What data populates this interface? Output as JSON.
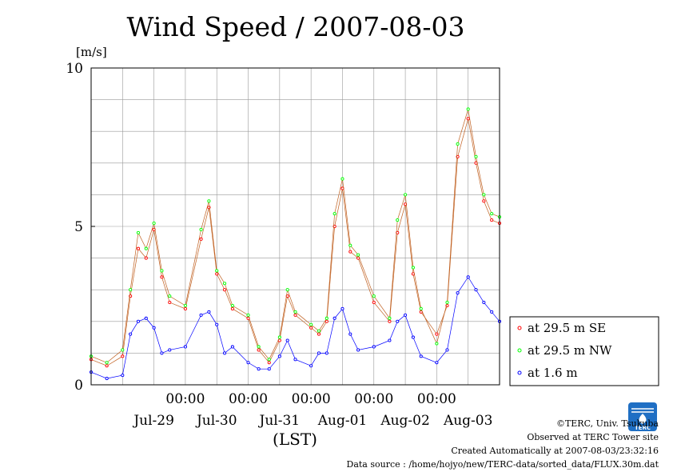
{
  "chart_data": {
    "type": "line",
    "title": "Wind Speed / 2007-08-03",
    "ylabel": "[m/s]",
    "xlabel": "(LST)",
    "ylim": [
      0,
      10
    ],
    "yticks": [
      "0",
      "5",
      "10"
    ],
    "xlim": [
      "2007-07-28T12:00",
      "2007-08-03T24:00"
    ],
    "x_time_labels": [
      "00:00",
      "00:00",
      "00:00",
      "00:00",
      "00:00"
    ],
    "x_date_labels": [
      "Jul-29",
      "Jul-30",
      "Jul-31",
      "Aug-01",
      "Aug-02",
      "Aug-03"
    ],
    "grid": true,
    "legend_position": "right",
    "series": [
      {
        "name": "at 29.5 m SE",
        "color": "#ff0000",
        "x": [
          "2007-07-28T12:00",
          "2007-07-28T18:00",
          "2007-07-29T00:00",
          "2007-07-29T03:00",
          "2007-07-29T06:00",
          "2007-07-29T09:00",
          "2007-07-29T12:00",
          "2007-07-29T15:00",
          "2007-07-29T18:00",
          "2007-07-30T00:00",
          "2007-07-30T06:00",
          "2007-07-30T09:00",
          "2007-07-30T12:00",
          "2007-07-30T15:00",
          "2007-07-30T18:00",
          "2007-07-31T00:00",
          "2007-07-31T04:00",
          "2007-07-31T08:00",
          "2007-07-31T12:00",
          "2007-07-31T15:00",
          "2007-07-31T18:00",
          "2007-08-01T00:00",
          "2007-08-01T03:00",
          "2007-08-01T06:00",
          "2007-08-01T09:00",
          "2007-08-01T12:00",
          "2007-08-01T15:00",
          "2007-08-01T18:00",
          "2007-08-02T00:00",
          "2007-08-02T06:00",
          "2007-08-02T09:00",
          "2007-08-02T12:00",
          "2007-08-02T15:00",
          "2007-08-02T18:00",
          "2007-08-03T00:00",
          "2007-08-03T04:00",
          "2007-08-03T08:00",
          "2007-08-03T12:00",
          "2007-08-03T15:00",
          "2007-08-03T18:00",
          "2007-08-03T21:00",
          "2007-08-03T24:00"
        ],
        "values": [
          0.8,
          0.6,
          0.9,
          2.8,
          4.3,
          4.0,
          4.9,
          3.4,
          2.6,
          2.4,
          4.6,
          5.6,
          3.5,
          3.0,
          2.4,
          2.1,
          1.1,
          0.7,
          1.4,
          2.8,
          2.2,
          1.8,
          1.6,
          2.0,
          5.0,
          6.2,
          4.2,
          4.0,
          2.6,
          2.0,
          4.8,
          5.7,
          3.5,
          2.3,
          1.6,
          2.5,
          7.2,
          8.4,
          7.0,
          5.8,
          5.2,
          5.1
        ]
      },
      {
        "name": "at 29.5 m NW",
        "color": "#00ff00",
        "x": [
          "2007-07-28T12:00",
          "2007-07-28T18:00",
          "2007-07-29T00:00",
          "2007-07-29T03:00",
          "2007-07-29T06:00",
          "2007-07-29T09:00",
          "2007-07-29T12:00",
          "2007-07-29T15:00",
          "2007-07-29T18:00",
          "2007-07-30T00:00",
          "2007-07-30T06:00",
          "2007-07-30T09:00",
          "2007-07-30T12:00",
          "2007-07-30T15:00",
          "2007-07-30T18:00",
          "2007-07-31T00:00",
          "2007-07-31T04:00",
          "2007-07-31T08:00",
          "2007-07-31T12:00",
          "2007-07-31T15:00",
          "2007-07-31T18:00",
          "2007-08-01T00:00",
          "2007-08-01T03:00",
          "2007-08-01T06:00",
          "2007-08-01T09:00",
          "2007-08-01T12:00",
          "2007-08-01T15:00",
          "2007-08-01T18:00",
          "2007-08-02T00:00",
          "2007-08-02T06:00",
          "2007-08-02T09:00",
          "2007-08-02T12:00",
          "2007-08-02T15:00",
          "2007-08-02T18:00",
          "2007-08-03T00:00",
          "2007-08-03T04:00",
          "2007-08-03T08:00",
          "2007-08-03T12:00",
          "2007-08-03T15:00",
          "2007-08-03T18:00",
          "2007-08-03T21:00",
          "2007-08-03T24:00"
        ],
        "values": [
          0.9,
          0.7,
          1.1,
          3.0,
          4.8,
          4.3,
          5.1,
          3.6,
          2.8,
          2.5,
          4.9,
          5.8,
          3.6,
          3.2,
          2.5,
          2.2,
          1.2,
          0.8,
          1.5,
          3.0,
          2.3,
          1.9,
          1.7,
          2.1,
          5.4,
          6.5,
          4.4,
          4.1,
          2.8,
          2.1,
          5.2,
          6.0,
          3.7,
          2.4,
          1.3,
          2.6,
          7.6,
          8.7,
          7.2,
          6.0,
          5.4,
          5.3
        ]
      },
      {
        "name": "at 1.6 m",
        "color": "#0000ff",
        "x": [
          "2007-07-28T12:00",
          "2007-07-28T18:00",
          "2007-07-29T00:00",
          "2007-07-29T03:00",
          "2007-07-29T06:00",
          "2007-07-29T09:00",
          "2007-07-29T12:00",
          "2007-07-29T15:00",
          "2007-07-29T18:00",
          "2007-07-30T00:00",
          "2007-07-30T06:00",
          "2007-07-30T09:00",
          "2007-07-30T12:00",
          "2007-07-30T15:00",
          "2007-07-30T18:00",
          "2007-07-31T00:00",
          "2007-07-31T04:00",
          "2007-07-31T08:00",
          "2007-07-31T12:00",
          "2007-07-31T15:00",
          "2007-07-31T18:00",
          "2007-08-01T00:00",
          "2007-08-01T03:00",
          "2007-08-01T06:00",
          "2007-08-01T09:00",
          "2007-08-01T12:00",
          "2007-08-01T15:00",
          "2007-08-01T18:00",
          "2007-08-02T00:00",
          "2007-08-02T06:00",
          "2007-08-02T09:00",
          "2007-08-02T12:00",
          "2007-08-02T15:00",
          "2007-08-02T18:00",
          "2007-08-03T00:00",
          "2007-08-03T04:00",
          "2007-08-03T08:00",
          "2007-08-03T12:00",
          "2007-08-03T15:00",
          "2007-08-03T18:00",
          "2007-08-03T21:00",
          "2007-08-03T24:00"
        ],
        "values": [
          0.4,
          0.2,
          0.3,
          1.6,
          2.0,
          2.1,
          1.8,
          1.0,
          1.1,
          1.2,
          2.2,
          2.3,
          1.9,
          1.0,
          1.2,
          0.7,
          0.5,
          0.5,
          0.9,
          1.4,
          0.8,
          0.6,
          1.0,
          1.0,
          2.1,
          2.4,
          1.6,
          1.1,
          1.2,
          1.4,
          2.0,
          2.2,
          1.5,
          0.9,
          0.7,
          1.1,
          2.9,
          3.4,
          3.0,
          2.6,
          2.3,
          2.0
        ]
      }
    ]
  },
  "credits": {
    "line1": "©TERC, Univ. Tsukuba",
    "line2": "Observed at TERC Tower site",
    "line3": "Created Automatically at 2007-08-03/23:32:16",
    "line4": "Data source : /home/hojyo/new/TERC-data/sorted_data/FLUX.30m.dat",
    "logo_text": "TERC"
  }
}
